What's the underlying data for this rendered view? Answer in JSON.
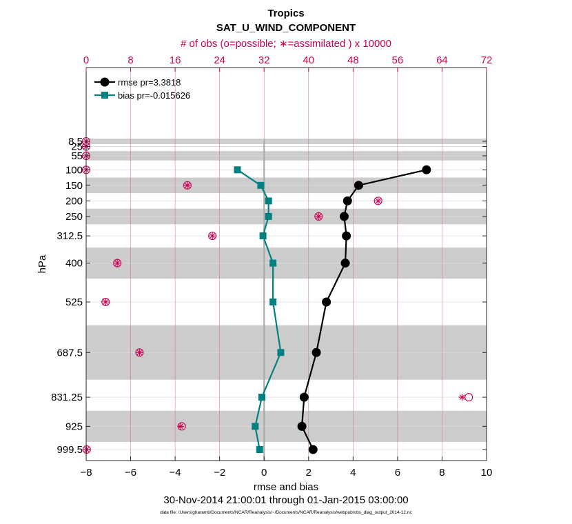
{
  "chart_data": {
    "type": "line",
    "title": "Tropics",
    "subtitle": "SAT_U_WIND_COMPONENT",
    "top_axis_label": "# of obs (o=possible; ∗=assimilated ) x 10000",
    "xlabel": "rmse and bias",
    "ylabel": "hPa",
    "date_range": "30-Nov-2014 21:00:01 through 01-Jan-2015 03:00:00",
    "footnote": "data file: /Users/gharamti/Documents/NCAR/Reanalysis/~/Documents/NCAR/Reanalysis/webpub/obs_diag_output_2014-12.nc",
    "xlim": [
      -8,
      10
    ],
    "x_ticks": [
      -8,
      -6,
      -4,
      -2,
      0,
      2,
      4,
      6,
      8,
      10
    ],
    "top_xlim": [
      0,
      72
    ],
    "top_ticks": [
      0,
      8,
      16,
      24,
      32,
      40,
      48,
      56,
      64,
      72
    ],
    "y_levels": [
      8.5,
      25,
      55,
      100,
      150,
      200,
      250,
      312.5,
      400,
      525,
      687.5,
      831.25,
      925,
      999.5
    ],
    "y_tick_labels": [
      "8.5",
      "25",
      "55",
      "100",
      "150",
      "200",
      "250",
      "312.5",
      "400",
      "525",
      "687.5",
      "831.25",
      "925",
      "999.5"
    ],
    "shaded_bands_hPa": [
      [
        0,
        17
      ],
      [
        40,
        70
      ],
      [
        125,
        175
      ],
      [
        225,
        275
      ],
      [
        350,
        450
      ],
      [
        600,
        775
      ],
      [
        875,
        975
      ]
    ],
    "series": [
      {
        "name": "rmse",
        "legend": "rmse pr=3.3818",
        "color": "#000000",
        "marker": "circle",
        "points": [
          [
            7.3,
            100
          ],
          [
            4.25,
            150
          ],
          [
            3.75,
            200
          ],
          [
            3.6,
            250
          ],
          [
            3.7,
            312.5
          ],
          [
            3.65,
            400
          ],
          [
            2.8,
            525
          ],
          [
            2.35,
            687.5
          ],
          [
            1.8,
            831.25
          ],
          [
            1.7,
            925
          ],
          [
            2.2,
            999.5
          ]
        ]
      },
      {
        "name": "bias",
        "legend": "bias pr=-0.015626",
        "color": "#008080",
        "marker": "square",
        "points": [
          [
            -1.2,
            100
          ],
          [
            -0.15,
            150
          ],
          [
            0.2,
            200
          ],
          [
            0.2,
            250
          ],
          [
            -0.05,
            312.5
          ],
          [
            0.4,
            400
          ],
          [
            0.4,
            525
          ],
          [
            0.75,
            687.5
          ],
          [
            -0.1,
            831.25
          ],
          [
            -0.4,
            925
          ],
          [
            -0.2,
            999.5
          ]
        ]
      }
    ],
    "obs_counts": {
      "color": "#cc0055",
      "possible": [
        [
          0,
          8.5
        ],
        [
          0,
          25
        ],
        [
          0,
          55
        ],
        [
          0,
          100
        ],
        [
          18.2,
          150
        ],
        [
          52.5,
          200
        ],
        [
          41.8,
          250
        ],
        [
          22.7,
          312.5
        ],
        [
          5.6,
          400
        ],
        [
          3.5,
          525
        ],
        [
          9.6,
          687.5
        ],
        [
          68.8,
          831.25
        ],
        [
          17.2,
          925
        ],
        [
          0.1,
          999.5
        ]
      ],
      "assimilated": [
        [
          0,
          8.5
        ],
        [
          0,
          25
        ],
        [
          0,
          55
        ],
        [
          0,
          100
        ],
        [
          18.2,
          150
        ],
        [
          52.5,
          200
        ],
        [
          41.8,
          250
        ],
        [
          22.7,
          312.5
        ],
        [
          5.6,
          400
        ],
        [
          3.5,
          525
        ],
        [
          9.6,
          687.5
        ],
        [
          67.6,
          831.25
        ],
        [
          17.0,
          925
        ],
        [
          0.1,
          999.5
        ]
      ]
    }
  }
}
